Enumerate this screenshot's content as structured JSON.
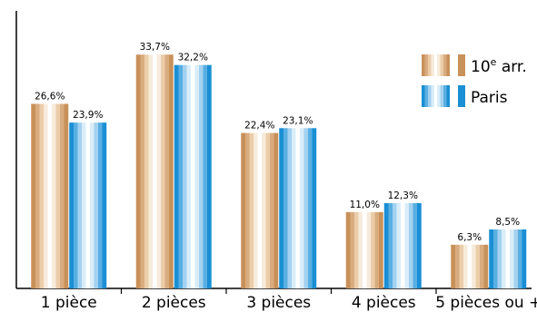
{
  "chart_data": {
    "type": "bar",
    "categories": [
      "1 pièce",
      "2 pièces",
      "3 pièces",
      "4 pièces",
      "5 pièces ou +"
    ],
    "series": [
      {
        "name": "10e arr.",
        "values": [
          26.6,
          33.7,
          22.4,
          11.0,
          6.3
        ],
        "labels": [
          "26,6%",
          "33,7%",
          "22,4%",
          "11,0%",
          "6,3%"
        ],
        "color": "#c8915a",
        "gradient": [
          "#c8915a",
          "#d9ac7f",
          "#ebcdaa",
          "#f7ebdc",
          "#ffffff"
        ]
      },
      {
        "name": "Paris",
        "values": [
          23.9,
          32.2,
          23.1,
          12.3,
          8.5
        ],
        "labels": [
          "23,9%",
          "32,2%",
          "23,1%",
          "12,3%",
          "8,5%"
        ],
        "color": "#1a8fd4",
        "gradient": [
          "#1a8fd4",
          "#5aafe2",
          "#a3d2f0",
          "#d9edf9",
          "#ffffff"
        ]
      }
    ],
    "ylim": [
      0,
      40
    ],
    "legend": {
      "position": "top-right",
      "items": [
        {
          "label": "10",
          "superscript": "e",
          "suffix": " arr."
        },
        {
          "label": "Paris",
          "superscript": "",
          "suffix": ""
        }
      ]
    },
    "grid": false
  }
}
